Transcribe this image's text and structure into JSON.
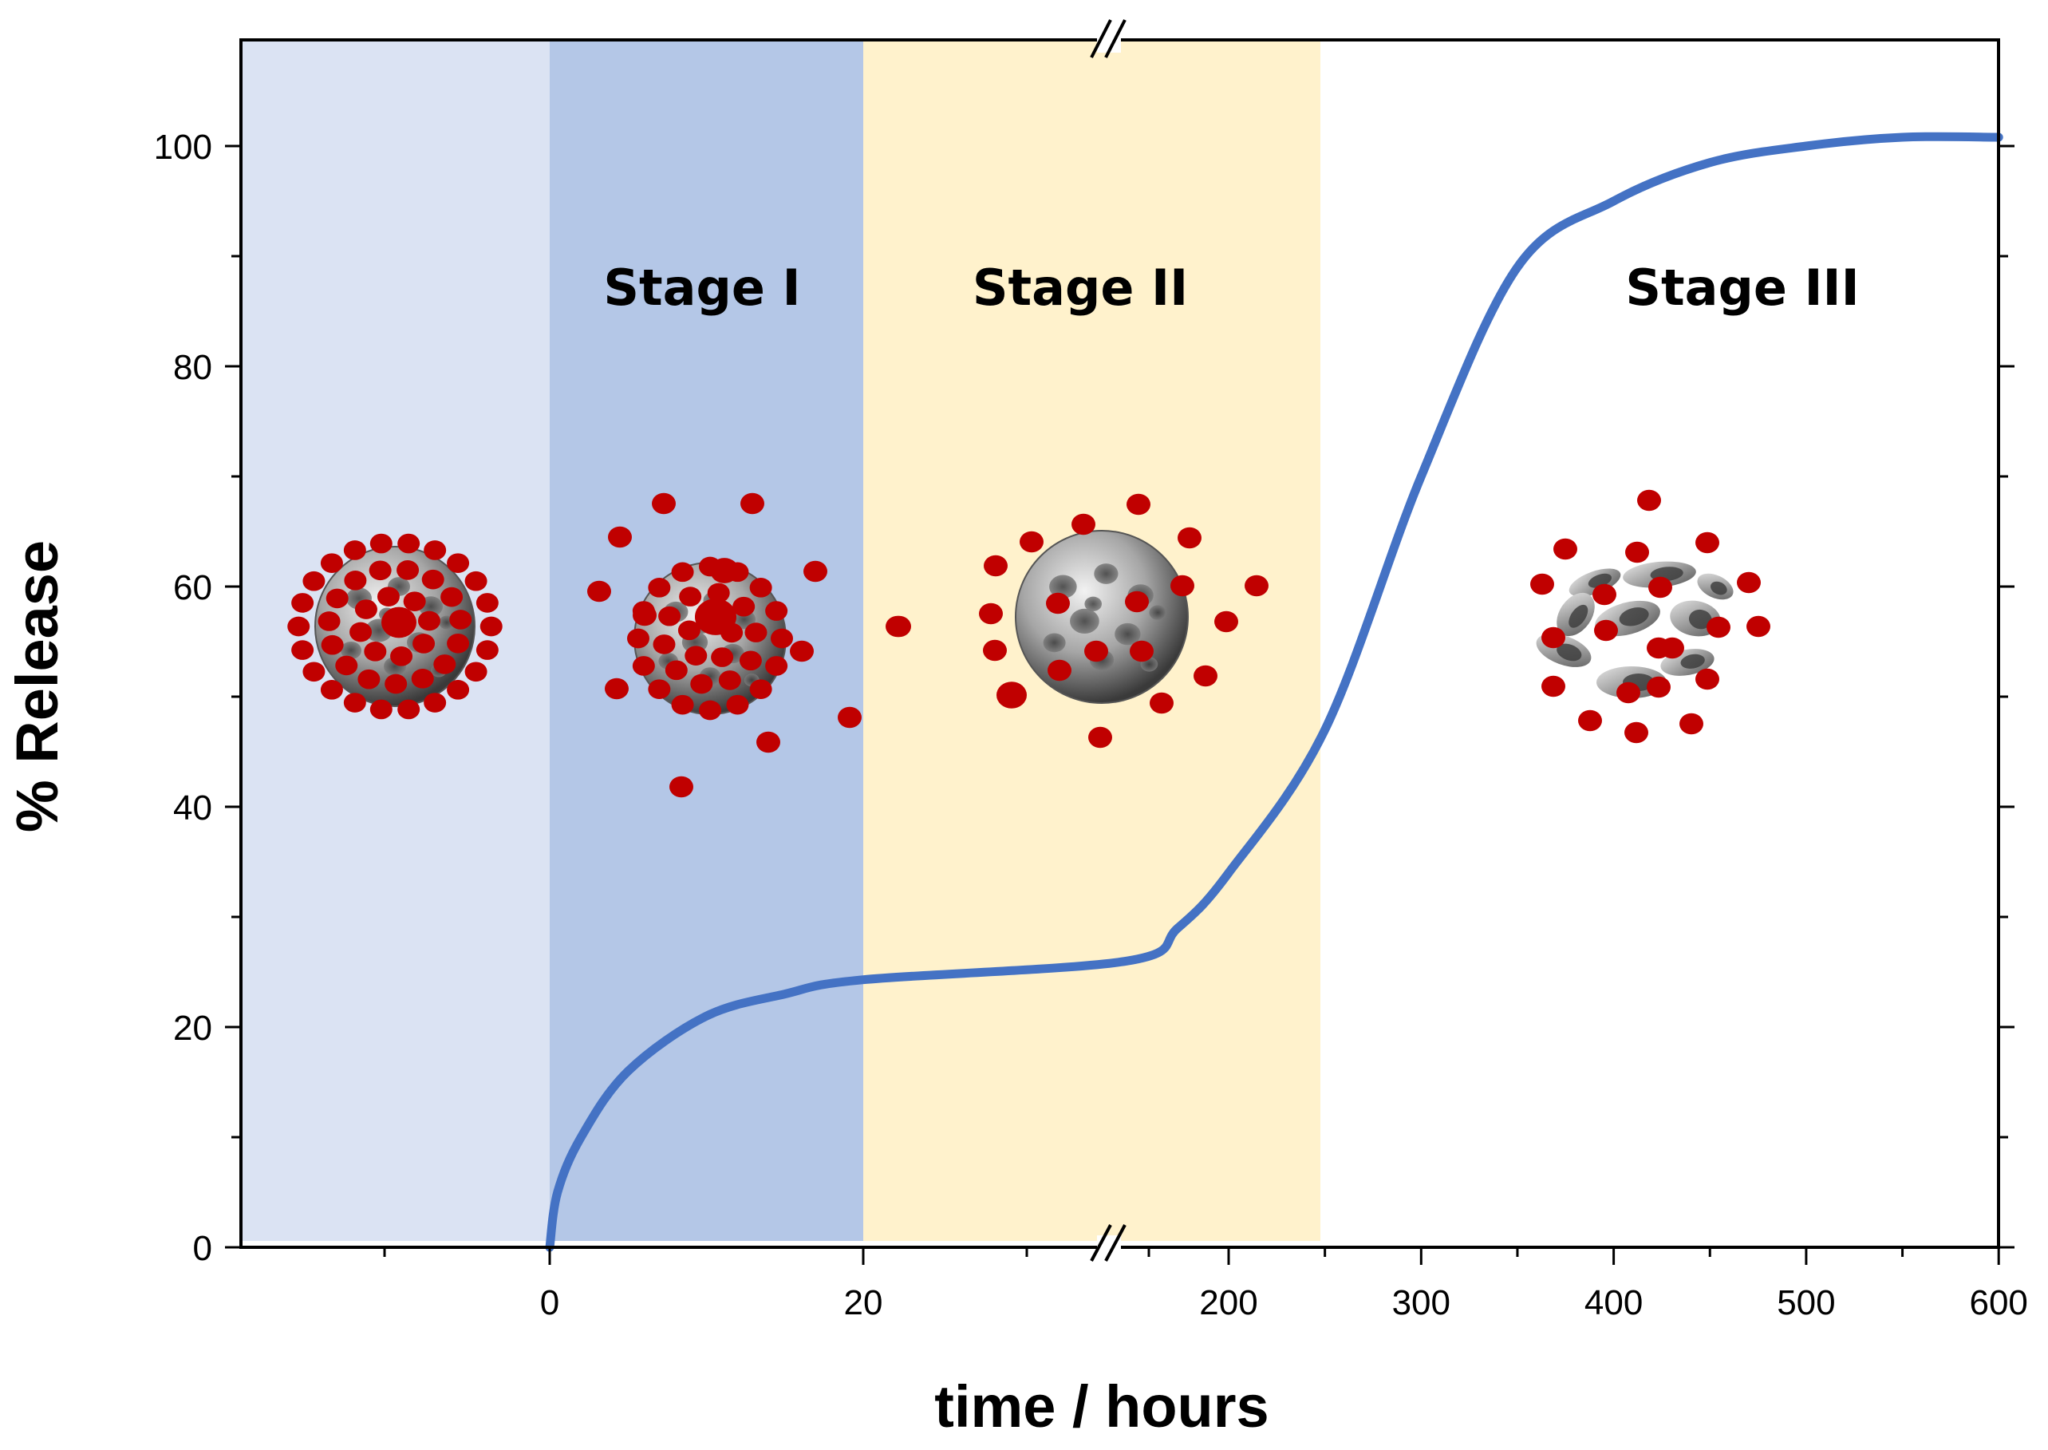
{
  "chart_data": {
    "type": "line",
    "xlabel": "time / hours",
    "ylabel": "% Release",
    "ylim": [
      0,
      110
    ],
    "y_ticks": [
      0,
      20,
      40,
      60,
      80,
      100
    ],
    "x_ticks": [
      "0",
      "20",
      "200",
      "300",
      "400",
      "500",
      "600"
    ],
    "x_axis_break": "between 20 and 200 hours",
    "grid": false,
    "legend": "none",
    "stages": [
      {
        "label": "",
        "color": "#dbe3f3"
      },
      {
        "label": "Stage I",
        "color": "#b4c7e7"
      },
      {
        "label": "Stage II",
        "color": "#fff2cc"
      },
      {
        "label": "Stage III",
        "color": "#ffffff"
      }
    ],
    "series": [
      {
        "color": "#4472c4",
        "points": [
          {
            "x": 0,
            "y": 0
          },
          {
            "x": 0.5,
            "y": 5
          },
          {
            "x": 2,
            "y": 10
          },
          {
            "x": 5,
            "y": 16
          },
          {
            "x": 10,
            "y": 21
          },
          {
            "x": 15,
            "y": 23
          },
          {
            "x": 20,
            "y": 24.3
          },
          {
            "x": 150,
            "y": 26
          },
          {
            "x": 175,
            "y": 29
          },
          {
            "x": 200,
            "y": 34
          },
          {
            "x": 250,
            "y": 47
          },
          {
            "x": 300,
            "y": 70
          },
          {
            "x": 350,
            "y": 89
          },
          {
            "x": 400,
            "y": 95
          },
          {
            "x": 450,
            "y": 98.5
          },
          {
            "x": 500,
            "y": 100
          },
          {
            "x": 550,
            "y": 100.8
          },
          {
            "x": 600,
            "y": 100.8
          }
        ]
      }
    ]
  },
  "colors": {
    "drug": "#c00000",
    "particle": "#9a9a9a",
    "axis": "#000000"
  }
}
